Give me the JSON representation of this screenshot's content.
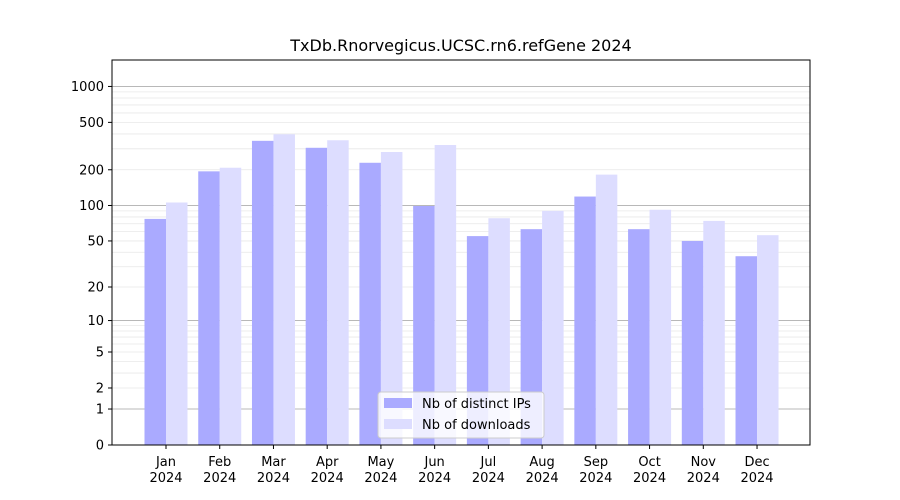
{
  "chart_data": {
    "type": "bar",
    "title": "TxDb.Rnorvegicus.UCSC.rn6.refGene 2024",
    "xlabel": "",
    "ylabel": "",
    "categories": [
      "Jan\n2024",
      "Feb\n2024",
      "Mar\n2024",
      "Apr\n2024",
      "May\n2024",
      "Jun\n2024",
      "Jul\n2024",
      "Aug\n2024",
      "Sep\n2024",
      "Oct\n2024",
      "Nov\n2024",
      "Dec\n2024"
    ],
    "series": [
      {
        "name": "Nb of distinct IPs",
        "color": "#aaaaff",
        "values": [
          77,
          194,
          350,
          306,
          229,
          99,
          55,
          63,
          119,
          63,
          50,
          37
        ]
      },
      {
        "name": "Nb of downloads",
        "color": "#ddddff",
        "values": [
          106,
          208,
          397,
          354,
          282,
          323,
          78,
          90,
          182,
          92,
          74,
          56
        ]
      }
    ],
    "yscale": "symlog",
    "ylim": [
      0,
      1200
    ],
    "yticks": [
      0,
      1,
      2,
      5,
      10,
      20,
      50,
      100,
      200,
      500,
      1000
    ],
    "ytick_labels": [
      "0",
      "1",
      "2",
      "5",
      "10",
      "20",
      "50",
      "100",
      "200",
      "500",
      "1000"
    ],
    "grid": true,
    "legend_position": "lower-center"
  }
}
